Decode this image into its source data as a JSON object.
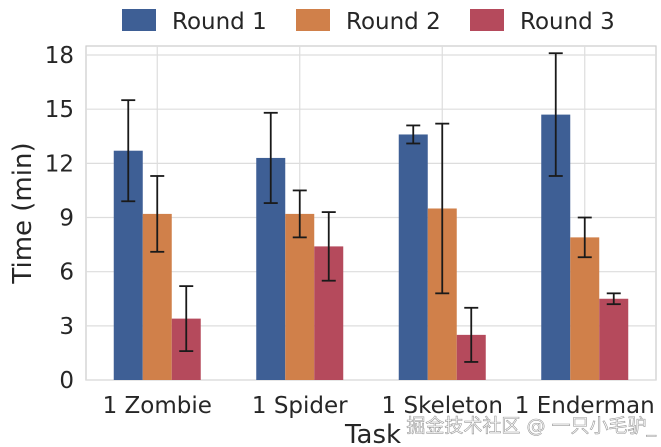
{
  "chart_data": {
    "type": "bar",
    "title": "",
    "xlabel": "Task",
    "ylabel": "Time (min)",
    "ylim": [
      0,
      18.5
    ],
    "yticks": [
      0,
      3,
      6,
      9,
      12,
      15,
      18
    ],
    "grid": true,
    "legend_position": "top",
    "categories": [
      "1 Zombie",
      "1 Spider",
      "1 Skeleton",
      "1 Enderman"
    ],
    "series": [
      {
        "name": "Round 1",
        "color": "#3e5f95",
        "values": [
          12.7,
          12.3,
          13.6,
          14.7
        ],
        "error": [
          2.8,
          2.5,
          0.5,
          3.4
        ]
      },
      {
        "name": "Round 2",
        "color": "#d0804a",
        "values": [
          9.2,
          9.2,
          9.5,
          7.9
        ],
        "error": [
          2.1,
          1.3,
          4.7,
          1.1
        ]
      },
      {
        "name": "Round 3",
        "color": "#b54a5c",
        "values": [
          3.4,
          7.4,
          2.5,
          4.5
        ],
        "error": [
          1.8,
          1.9,
          1.5,
          0.3
        ]
      }
    ]
  },
  "watermark": "掘金技术社区 @ 一只小毛驴_"
}
